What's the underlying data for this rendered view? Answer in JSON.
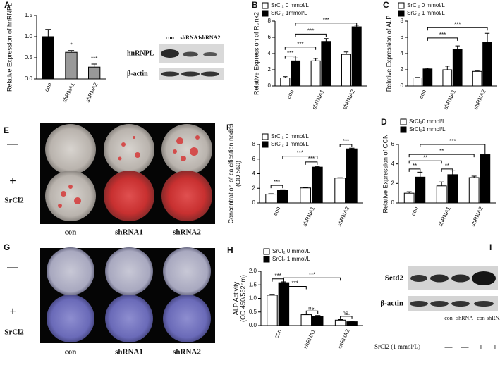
{
  "chart_data": [
    {
      "type": "bar",
      "label": "A",
      "ylabel": [
        "Relative Expression of hnRNPL"
      ],
      "categories": [
        "con",
        "shRNA1",
        "shRNA2"
      ],
      "values": [
        1.0,
        0.63,
        0.28
      ],
      "errors": [
        0.17,
        0.04,
        0.07
      ],
      "colors": [
        "#000000",
        "#999999",
        "#999999"
      ],
      "ylim": [
        0,
        1.5
      ],
      "yticks": [
        {
          "value": 0,
          "label": "0.0"
        },
        {
          "value": 0.5,
          "label": "0.5"
        },
        {
          "value": 1,
          "label": "1.0"
        },
        {
          "value": 1.5,
          "label": "1.5"
        }
      ],
      "annotations": [
        "*",
        "***"
      ]
    },
    {
      "type": "grouped_bar",
      "label": "B",
      "ylabel": [
        "Relative Expression of Runx2"
      ],
      "categories": [
        "con",
        "shRNA1",
        "shRNA2"
      ],
      "series": [
        {
          "name": "SrCl₂ 0 mmol/L",
          "color": "#ffffff",
          "values": [
            1.0,
            3.1,
            3.9
          ],
          "errors": [
            0.15,
            0.3,
            0.3
          ]
        },
        {
          "name": "SrCl₂ 1mmol/L",
          "color": "#000000",
          "values": [
            3.1,
            5.5,
            7.3
          ],
          "errors": [
            0.35,
            0.35,
            0.2
          ]
        }
      ],
      "ylim": [
        0,
        8
      ],
      "yticks": [
        0,
        2,
        4,
        6,
        8
      ],
      "annotations": [
        "***",
        "***",
        "***",
        "***"
      ]
    },
    {
      "type": "grouped_bar",
      "label": "C",
      "ylabel": [
        "Relative Expression of ALP"
      ],
      "categories": [
        "con",
        "shRNA1",
        "shRNA2"
      ],
      "series": [
        {
          "name": "SrCl₂ 0 mmol/L",
          "color": "#ffffff",
          "values": [
            1.0,
            2.0,
            1.8
          ],
          "errors": [
            0.05,
            0.45,
            0.1
          ]
        },
        {
          "name": "SrCl₂ 1 mmol/L",
          "color": "#000000",
          "values": [
            2.1,
            4.5,
            5.4
          ],
          "errors": [
            0.1,
            0.45,
            1.1
          ]
        }
      ],
      "ylim": [
        0,
        8
      ],
      "yticks": [
        0,
        2,
        4,
        6,
        8
      ],
      "annotations": [
        "***",
        "***"
      ]
    },
    {
      "type": "grouped_bar",
      "label": "F",
      "ylabel": [
        "Concentration of calcification nodes",
        "(OD 560)"
      ],
      "categories": [
        "con",
        "shRNA1",
        "shRNA2"
      ],
      "series": [
        {
          "name": "SrCl₂ 0 mmol/L",
          "color": "#ffffff",
          "values": [
            1.2,
            2.05,
            3.4
          ],
          "errors": [
            0.05,
            0.05,
            0.05
          ]
        },
        {
          "name": "SrCl₂ 1 mmol/L",
          "color": "#000000",
          "values": [
            1.75,
            4.9,
            7.4
          ],
          "errors": [
            0.05,
            0.1,
            0.1
          ]
        }
      ],
      "ylim": [
        0,
        8
      ],
      "yticks": [
        0,
        2,
        4,
        6,
        8
      ],
      "annotations": [
        "***",
        "***",
        "***",
        "***"
      ]
    },
    {
      "type": "grouped_bar",
      "label": "D",
      "ylabel": [
        "Relative Expression of OCN"
      ],
      "categories": [
        "con",
        "shRNA1",
        "shRNA2"
      ],
      "series": [
        {
          "name": "SrCl₂0 mmol/L",
          "color": "#ffffff",
          "values": [
            1.0,
            1.75,
            2.6
          ],
          "errors": [
            0.15,
            0.4,
            0.15
          ]
        },
        {
          "name": "SrCl₂1 mmol/L",
          "color": "#000000",
          "values": [
            2.65,
            2.9,
            4.95
          ],
          "errors": [
            0.5,
            0.4,
            0.8
          ]
        }
      ],
      "ylim": [
        0,
        6
      ],
      "yticks": [
        0,
        2,
        4,
        6
      ],
      "annotations": [
        "**",
        "**",
        "**",
        "**",
        "***"
      ]
    },
    {
      "type": "grouped_bar",
      "label": "H",
      "ylabel": [
        "ALP Activity",
        "(OD 450/562nm)"
      ],
      "categories": [
        "con",
        "shRNA1",
        "shRNA2"
      ],
      "series": [
        {
          "name": "SrCl₂ 0 mmol/L",
          "color": "#ffffff",
          "values": [
            1.12,
            0.4,
            0.2
          ],
          "errors": [
            0.03,
            0.02,
            0.02
          ]
        },
        {
          "name": "SrCl₂ 1 mmol/L",
          "color": "#000000",
          "values": [
            1.58,
            0.35,
            0.14
          ],
          "errors": [
            0.03,
            0.02,
            0.02
          ]
        }
      ],
      "ylim": [
        0,
        2
      ],
      "yticks": [
        {
          "value": 0,
          "label": "0.0"
        },
        {
          "value": 0.5,
          "label": "0.5"
        },
        {
          "value": 1,
          "label": "1.0"
        },
        {
          "value": 1.5,
          "label": "1.5"
        },
        {
          "value": 2,
          "label": "2.0"
        }
      ],
      "annotations": [
        "***",
        "***",
        "***",
        "ns.",
        "ns."
      ]
    }
  ],
  "blot_a": {
    "lanes": [
      "con",
      "shRNA1",
      "shRNA2"
    ],
    "proteins": [
      "hnRNPL",
      "β-actin"
    ]
  },
  "panel_e": {
    "label": "E",
    "rows": [
      "—",
      "+"
    ],
    "row_title": "SrCl2",
    "columns": [
      "con",
      "shRNA1",
      "shRNA2"
    ]
  },
  "panel_g": {
    "label": "G",
    "rows": [
      "—",
      "+"
    ],
    "row_title": "SrCl2",
    "columns": [
      "con",
      "shRNA1",
      "shRNA2"
    ]
  },
  "panel_i": {
    "label": "I",
    "proteins": [
      "Setd2",
      "β-actin"
    ],
    "lanes": [
      "con",
      "shRNA",
      "con",
      "shRNA"
    ],
    "condition": "SrCl2 (1 mmol/L)",
    "signs": [
      "—",
      "—",
      "+",
      "+"
    ]
  }
}
